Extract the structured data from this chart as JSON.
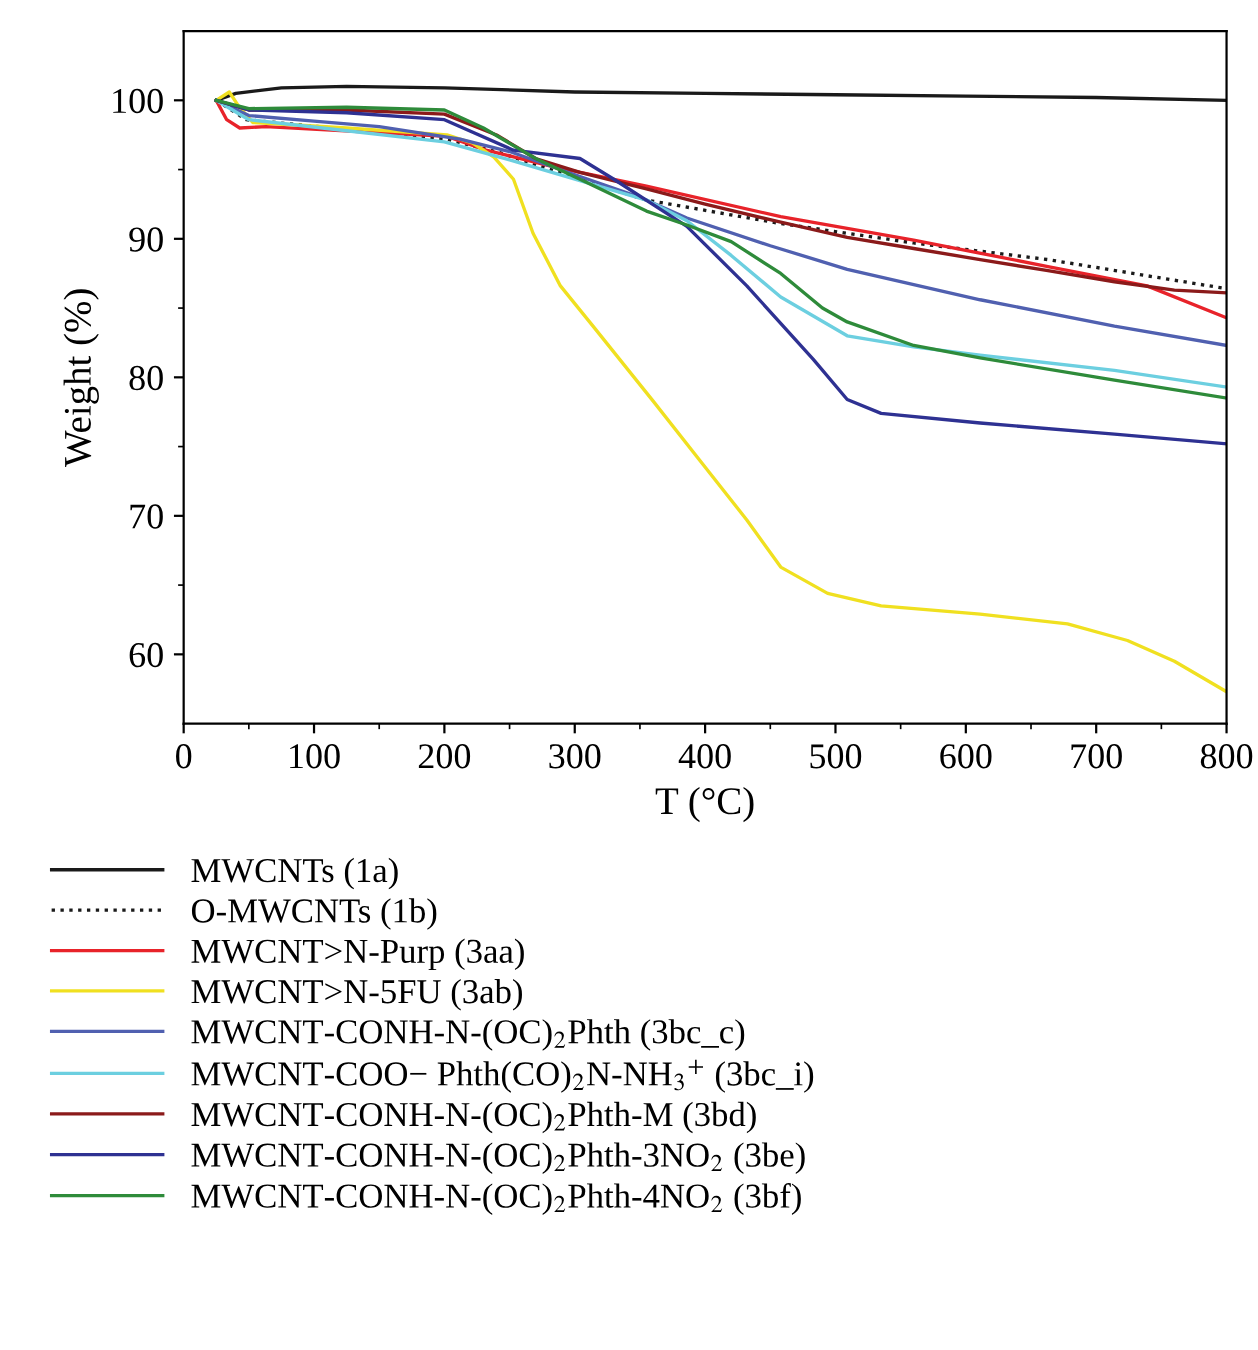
{
  "chart_data": {
    "type": "line",
    "xlabel": "T (°C)",
    "ylabel": "Weight (%)",
    "xlim": [
      0,
      800
    ],
    "ylim": [
      55,
      105
    ],
    "xticks": [
      0,
      100,
      200,
      300,
      400,
      500,
      600,
      700,
      800
    ],
    "yticks": [
      60,
      70,
      80,
      90,
      100
    ],
    "grid": false,
    "legend": "bottom",
    "marker": "none",
    "series": [
      {
        "name": "MWCNTs (1a)",
        "color": "#1a1a1a",
        "line_style": "solid",
        "x": [
          25,
          40,
          75,
          125,
          200,
          300,
          400,
          500,
          600,
          700,
          800
        ],
        "values": [
          100,
          100.5,
          100.9,
          101.0,
          100.9,
          100.6,
          100.5,
          100.4,
          100.3,
          100.2,
          100.0
        ]
      },
      {
        "name": "O-MWCNTs (1b)",
        "color": "#1a1a1a",
        "line_style": "dotted",
        "x": [
          25,
          48,
          125,
          202,
          243,
          304,
          355,
          458,
          560,
          663,
          800
        ],
        "values": [
          100,
          98.6,
          97.9,
          97.2,
          96.2,
          94.3,
          92.8,
          91.1,
          89.7,
          88.5,
          86.4
        ]
      },
      {
        "name": "MWCNT>N-Purp (3aa)",
        "color": "#e8232a",
        "line_style": "solid",
        "x": [
          25,
          33,
          43,
          63,
          202,
          232,
          284,
          355,
          458,
          560,
          663,
          739,
          800
        ],
        "values": [
          100,
          98.6,
          98.0,
          98.1,
          97.4,
          96.4,
          95.2,
          93.8,
          91.6,
          89.9,
          88.0,
          86.6,
          84.3
        ]
      },
      {
        "name": "MWCNT>N-5FU (3ab)",
        "color": "#f0e020",
        "line_style": "solid",
        "x": [
          25,
          35,
          42,
          53,
          125,
          202,
          222,
          238,
          253,
          268,
          289,
          314,
          360,
          396,
          432,
          458,
          494,
          535,
          611,
          678,
          724,
          760,
          800
        ],
        "values": [
          100,
          100.6,
          99.6,
          98.4,
          98.0,
          97.5,
          96.9,
          95.9,
          94.3,
          90.4,
          86.6,
          83.7,
          78.3,
          74.0,
          69.7,
          66.3,
          64.4,
          63.5,
          62.9,
          62.2,
          61.0,
          59.5,
          57.3
        ]
      },
      {
        "name": "MWCNT-CONH-N-(OC)$_{2}$Phth (3bc_c)",
        "color": "#5060b0",
        "line_style": "solid",
        "x": [
          25,
          50,
          100,
          150,
          212,
          250,
          304,
          350,
          386,
          450,
          509,
          611,
          714,
          800
        ],
        "values": [
          100,
          98.9,
          98.5,
          98.1,
          97.2,
          96.3,
          94.5,
          93.0,
          91.5,
          89.5,
          87.8,
          85.6,
          83.7,
          82.3
        ]
      },
      {
        "name": "MWCNT-COO− Phth(CO)$_{2}$N-NH$_{3}$$^{+}$ (3bc_i)",
        "color": "#6ccfe0",
        "line_style": "solid",
        "x": [
          25,
          50,
          125,
          200,
          250,
          304,
          355,
          386,
          420,
          458,
          509,
          560,
          611,
          714,
          800
        ],
        "values": [
          100,
          98.6,
          97.8,
          97.0,
          95.7,
          94.2,
          92.8,
          91.3,
          88.8,
          85.8,
          83.0,
          82.2,
          81.6,
          80.5,
          79.3
        ]
      },
      {
        "name": "MWCNT-CONH-N-(OC)$_{2}$Phth-M (3bd)",
        "color": "#8b1a1a",
        "line_style": "solid",
        "x": [
          25,
          50,
          125,
          200,
          240,
          270,
          304,
          355,
          400,
          458,
          509,
          560,
          611,
          663,
          714,
          760,
          800
        ],
        "values": [
          100,
          99.3,
          99.3,
          99.0,
          97.5,
          95.8,
          94.8,
          93.6,
          92.5,
          91.2,
          90.1,
          89.3,
          88.5,
          87.7,
          86.9,
          86.3,
          86.1
        ]
      },
      {
        "name": "MWCNT-CONH-N-(OC)$_{2}$Phth-3NO$_{2}$ (3be)",
        "color": "#2e3192",
        "line_style": "solid",
        "x": [
          25,
          50,
          125,
          200,
          253,
          304,
          330,
          386,
          432,
          483,
          509,
          535,
          611,
          714,
          800
        ],
        "values": [
          100,
          99.3,
          99.1,
          98.6,
          96.4,
          95.8,
          94.3,
          90.9,
          86.6,
          81.3,
          78.4,
          77.4,
          76.7,
          75.9,
          75.2
        ]
      },
      {
        "name": "MWCNT-CONH-N-(OC)$_{2}$Phth-4NO$_{2}$ (3bf)",
        "color": "#2e8b3a",
        "line_style": "solid",
        "x": [
          25,
          50,
          125,
          200,
          230,
          270,
          304,
          355,
          386,
          420,
          458,
          490,
          509,
          560,
          611,
          714,
          800
        ],
        "values": [
          100,
          99.4,
          99.5,
          99.3,
          98.0,
          95.8,
          94.3,
          92.0,
          91.0,
          89.8,
          87.5,
          85.0,
          84.0,
          82.3,
          81.4,
          79.8,
          78.5
        ]
      }
    ]
  }
}
